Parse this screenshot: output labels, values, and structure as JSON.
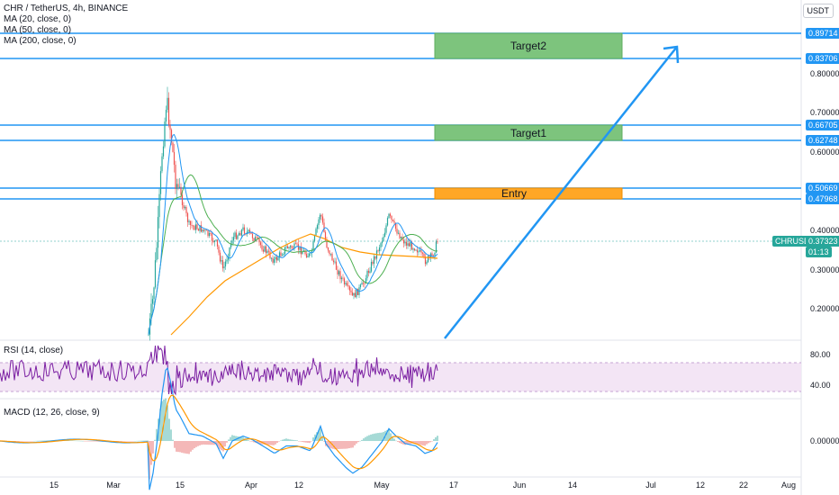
{
  "header": {
    "symbol_title": "CHR / TetherUS, 4h, BINANCE",
    "indicators": [
      "MA (20, close, 0)",
      "MA (50, close, 0)",
      "MA (200, close, 0)"
    ],
    "currency": "USDT"
  },
  "zones": {
    "target2": "Target2",
    "target1": "Target1",
    "entry": "Entry"
  },
  "price_axis": {
    "levels": [
      {
        "value": "0.89714",
        "highlighted": true
      },
      {
        "value": "0.83706",
        "highlighted": true
      },
      {
        "value": "0.80000",
        "highlighted": false
      },
      {
        "value": "0.70000",
        "highlighted": false
      },
      {
        "value": "0.66705",
        "highlighted": true
      },
      {
        "value": "0.62748",
        "highlighted": true
      },
      {
        "value": "0.60000",
        "highlighted": false
      },
      {
        "value": "0.50669",
        "highlighted": true
      },
      {
        "value": "0.47968",
        "highlighted": true
      },
      {
        "value": "0.40000",
        "highlighted": false
      },
      {
        "value": "0.30000",
        "highlighted": false
      },
      {
        "value": "0.20000",
        "highlighted": false
      }
    ],
    "current": {
      "symbol": "CHRUSDT",
      "price": "0.37323",
      "countdown": "01:13"
    }
  },
  "rsi": {
    "label": "RSI (14, close)",
    "ticks": [
      "80.00",
      "40.00"
    ]
  },
  "macd": {
    "label": "MACD (12, 26, close, 9)",
    "ticks": [
      "0.00000"
    ]
  },
  "time_axis": [
    "15",
    "Mar",
    "15",
    "Apr",
    "12",
    "May",
    "17",
    "Jun",
    "14",
    "Jul",
    "12",
    "22",
    "Aug"
  ],
  "colors": {
    "level_line": "#2196f3",
    "target_fill": "#7dc47d",
    "entry_fill": "#ffa726",
    "current_price": "#26a69a",
    "ma20": "#2196f3",
    "ma50": "#4caf50",
    "ma200": "#ff9800",
    "rsi_line": "#7b1fa2",
    "rsi_band": "#f3e5f5"
  }
}
